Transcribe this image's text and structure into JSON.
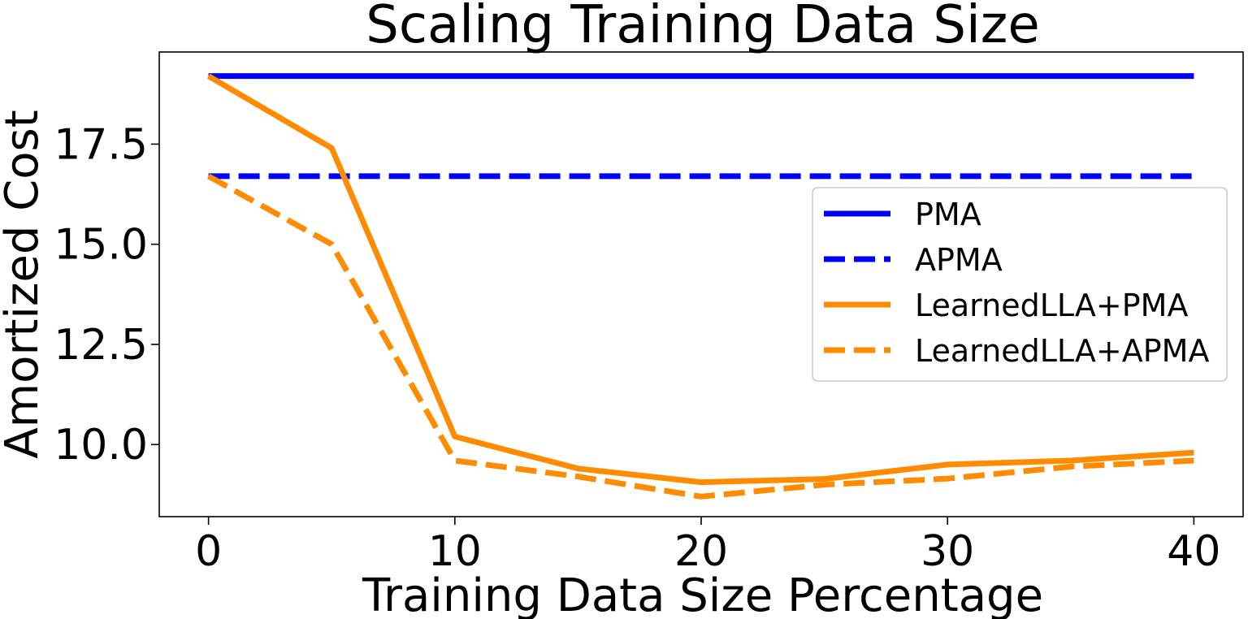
{
  "chart_data": {
    "type": "line",
    "title": "Scaling Training Data Size",
    "xlabel": "Training Data Size Percentage",
    "ylabel": "Amortized Cost",
    "xlim": [
      -2,
      42
    ],
    "ylim": [
      8.2,
      19.8
    ],
    "xticks": [
      0,
      10,
      20,
      30,
      40
    ],
    "xtick_labels": [
      "0",
      "10",
      "20",
      "30",
      "40"
    ],
    "yticks": [
      10.0,
      12.5,
      15.0,
      17.5
    ],
    "ytick_labels": [
      "10.0",
      "12.5",
      "15.0",
      "17.5"
    ],
    "grid": false,
    "legend_position": "center-right",
    "x": [
      0,
      5,
      10,
      15,
      20,
      25,
      30,
      35,
      40
    ],
    "series": [
      {
        "name": "PMA",
        "color": "#0000ff",
        "dash": "solid",
        "values": [
          19.2,
          19.2,
          19.2,
          19.2,
          19.2,
          19.2,
          19.2,
          19.2,
          19.2
        ]
      },
      {
        "name": "APMA",
        "color": "#0000ff",
        "dash": "dashed",
        "values": [
          16.7,
          16.7,
          16.7,
          16.7,
          16.7,
          16.7,
          16.7,
          16.7,
          16.7
        ]
      },
      {
        "name": "LearnedLLA+PMA",
        "color": "#ff8c00",
        "dash": "solid",
        "values": [
          19.2,
          17.4,
          10.2,
          9.4,
          9.06,
          9.14,
          9.5,
          9.6,
          9.8
        ]
      },
      {
        "name": "LearnedLLA+APMA",
        "color": "#ff8c00",
        "dash": "dashed",
        "values": [
          16.7,
          15.0,
          9.6,
          9.2,
          8.7,
          9.0,
          9.15,
          9.45,
          9.6
        ]
      }
    ]
  }
}
